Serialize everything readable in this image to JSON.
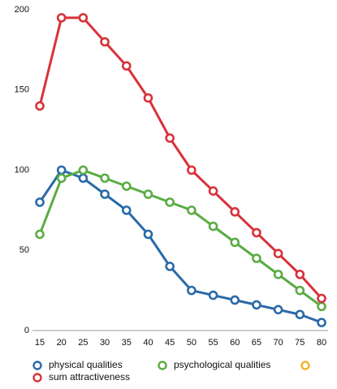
{
  "chart_data": {
    "type": "line",
    "x": [
      15,
      20,
      25,
      30,
      35,
      40,
      45,
      50,
      55,
      60,
      65,
      70,
      75,
      80
    ],
    "xlim": [
      15,
      80
    ],
    "xticks": [
      15,
      20,
      25,
      30,
      35,
      40,
      45,
      50,
      55,
      60,
      65,
      70,
      75,
      80
    ],
    "ylim": [
      0,
      200
    ],
    "yticks": [
      0,
      50,
      100,
      150,
      200
    ],
    "grid": false,
    "legend": "bottom",
    "series": [
      {
        "name": "physical qualities",
        "color": "#2a6aa8",
        "values": [
          80,
          100,
          95,
          85,
          75,
          60,
          40,
          25,
          22,
          19,
          16,
          13,
          10,
          5
        ]
      },
      {
        "name": "psychological qualities",
        "color": "#5aac44",
        "values": [
          60,
          95,
          100,
          95,
          90,
          85,
          80,
          75,
          65,
          55,
          45,
          35,
          25,
          15
        ]
      },
      {
        "name": null,
        "color": "#f2b52a",
        "values": [
          null,
          null,
          null,
          null,
          null,
          null,
          null,
          null,
          null,
          null,
          null,
          null,
          null,
          null
        ]
      },
      {
        "name": "sum attractiveness",
        "color": "#d8323a",
        "values": [
          140,
          195,
          195,
          180,
          165,
          145,
          120,
          100,
          87,
          74,
          61,
          48,
          35,
          20
        ]
      }
    ]
  }
}
